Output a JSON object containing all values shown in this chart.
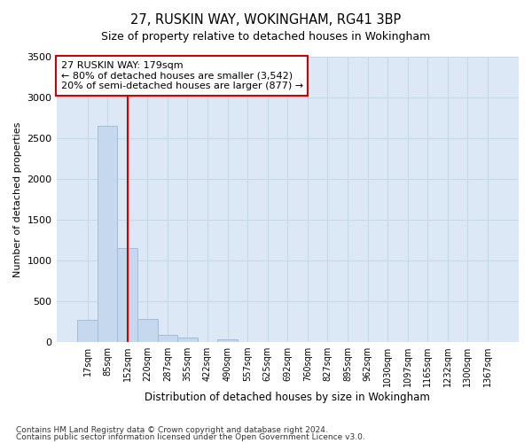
{
  "title": "27, RUSKIN WAY, WOKINGHAM, RG41 3BP",
  "subtitle": "Size of property relative to detached houses in Wokingham",
  "xlabel": "Distribution of detached houses by size in Wokingham",
  "ylabel": "Number of detached properties",
  "footnote1": "Contains HM Land Registry data © Crown copyright and database right 2024.",
  "footnote2": "Contains public sector information licensed under the Open Government Licence v3.0.",
  "bar_labels": [
    "17sqm",
    "85sqm",
    "152sqm",
    "220sqm",
    "287sqm",
    "355sqm",
    "422sqm",
    "490sqm",
    "557sqm",
    "625sqm",
    "692sqm",
    "760sqm",
    "827sqm",
    "895sqm",
    "962sqm",
    "1030sqm",
    "1097sqm",
    "1165sqm",
    "1232sqm",
    "1300sqm",
    "1367sqm"
  ],
  "bar_values": [
    270,
    2650,
    1150,
    280,
    90,
    50,
    5,
    30,
    0,
    0,
    0,
    0,
    0,
    0,
    0,
    0,
    0,
    0,
    0,
    0,
    0
  ],
  "bar_color": "#c5d8ee",
  "bar_edge_color": "#a0bedd",
  "vline_x": 2.0,
  "vline_color": "#cc0000",
  "annotation_title": "27 RUSKIN WAY: 179sqm",
  "annotation_line1": "← 80% of detached houses are smaller (3,542)",
  "annotation_line2": "20% of semi-detached houses are larger (877) →",
  "annotation_box_color": "#ffffff",
  "annotation_box_edgecolor": "#cc0000",
  "ylim": [
    0,
    3500
  ],
  "grid_color": "#c8d8e8",
  "plot_background": "#dce8f5",
  "fig_background": "#ffffff"
}
